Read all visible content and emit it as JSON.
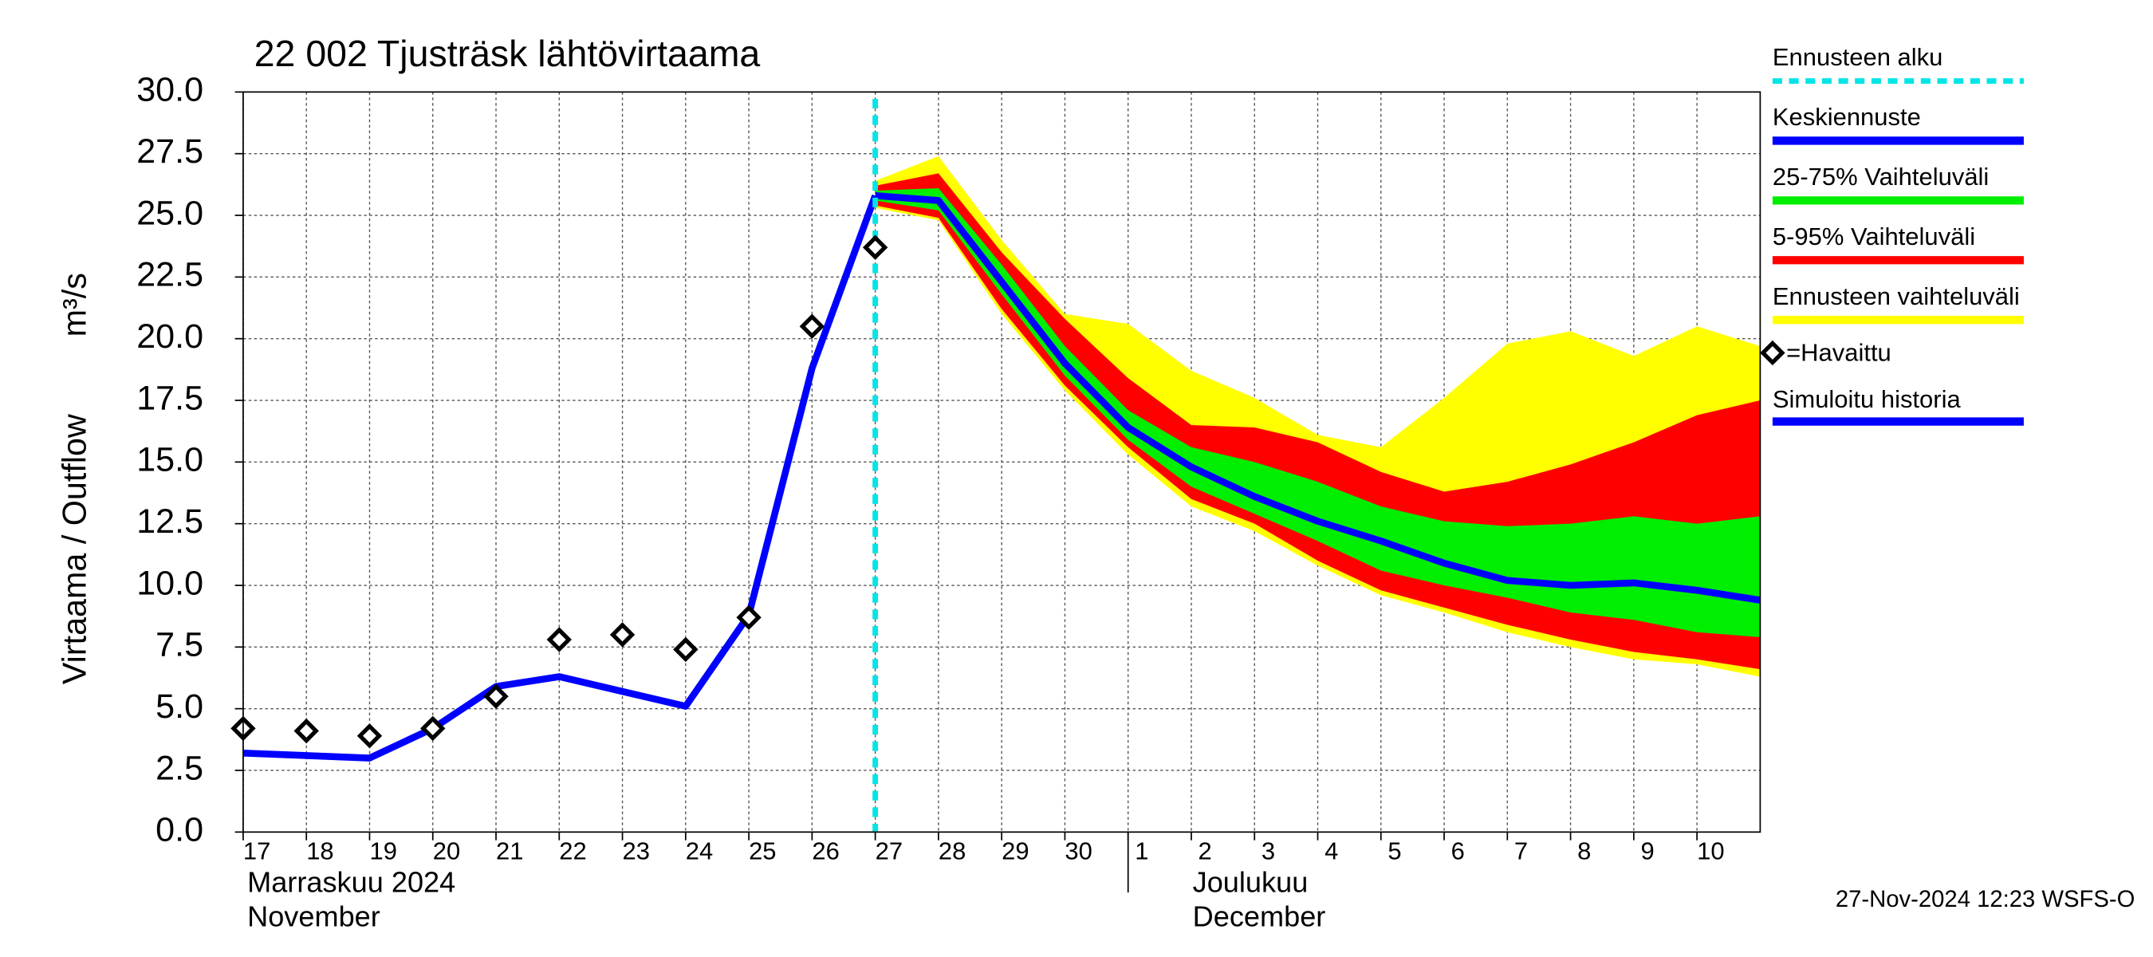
{
  "chart_data": {
    "type": "forecast-band",
    "title": "22 002 Tjusträsk lähtövirtaama",
    "ylabel": "Virtaama / Outflow",
    "yunit": "m³/s",
    "ylim": [
      0,
      30
    ],
    "yticks": [
      {
        "value": 0,
        "label": "0.0"
      },
      {
        "value": 2.5,
        "label": "2.5"
      },
      {
        "value": 5,
        "label": "5.0"
      },
      {
        "value": 7.5,
        "label": "7.5"
      },
      {
        "value": 10,
        "label": "10.0"
      },
      {
        "value": 12.5,
        "label": "12.5"
      },
      {
        "value": 15,
        "label": "15.0"
      },
      {
        "value": 17.5,
        "label": "17.5"
      },
      {
        "value": 20,
        "label": "20.0"
      },
      {
        "value": 22.5,
        "label": "22.5"
      },
      {
        "value": 25,
        "label": "25.0"
      },
      {
        "value": 27.5,
        "label": "27.5"
      },
      {
        "value": 30,
        "label": "30.0"
      }
    ],
    "xlim": [
      "2024-11-17",
      "2024-12-11"
    ],
    "xticks": [
      {
        "value": "2024-11-17",
        "label": "17"
      },
      {
        "value": "2024-11-18",
        "label": "18"
      },
      {
        "value": "2024-11-19",
        "label": "19"
      },
      {
        "value": "2024-11-20",
        "label": "20"
      },
      {
        "value": "2024-11-21",
        "label": "21"
      },
      {
        "value": "2024-11-22",
        "label": "22"
      },
      {
        "value": "2024-11-23",
        "label": "23"
      },
      {
        "value": "2024-11-24",
        "label": "24"
      },
      {
        "value": "2024-11-25",
        "label": "25"
      },
      {
        "value": "2024-11-26",
        "label": "26"
      },
      {
        "value": "2024-11-27",
        "label": "27"
      },
      {
        "value": "2024-11-28",
        "label": "28"
      },
      {
        "value": "2024-11-29",
        "label": "29"
      },
      {
        "value": "2024-11-30",
        "label": "30"
      },
      {
        "value": "2024-12-01",
        "label": "1"
      },
      {
        "value": "2024-12-02",
        "label": "2"
      },
      {
        "value": "2024-12-03",
        "label": "3"
      },
      {
        "value": "2024-12-04",
        "label": "4"
      },
      {
        "value": "2024-12-05",
        "label": "5"
      },
      {
        "value": "2024-12-06",
        "label": "6"
      },
      {
        "value": "2024-12-07",
        "label": "7"
      },
      {
        "value": "2024-12-08",
        "label": "8"
      },
      {
        "value": "2024-12-09",
        "label": "9"
      },
      {
        "value": "2024-12-10",
        "label": "10"
      }
    ],
    "grid": true,
    "month_labels": [
      {
        "value": "2024-11-17",
        "lines": [
          "Marraskuu 2024",
          "November"
        ]
      },
      {
        "value": "2024-12-01",
        "lines": [
          "Joulukuu",
          "December"
        ]
      }
    ],
    "forecast_start": {
      "name": "Ennusteen alku",
      "value": "2024-11-27",
      "color": "#00e5e5"
    },
    "history_x": [
      "2024-11-17",
      "2024-11-18",
      "2024-11-19",
      "2024-11-20",
      "2024-11-21",
      "2024-11-22",
      "2024-11-23",
      "2024-11-24",
      "2024-11-25",
      "2024-11-26",
      "2024-11-27"
    ],
    "observed": {
      "name": "=Havaittu",
      "values": [
        4.2,
        4.1,
        3.9,
        4.2,
        5.5,
        7.8,
        8.0,
        7.4,
        8.7,
        20.5,
        23.7
      ]
    },
    "simulated": {
      "name": "Simuloitu historia",
      "color": "#0000ff",
      "values": [
        3.2,
        3.1,
        3.0,
        4.2,
        5.9,
        6.3,
        5.7,
        5.1,
        8.8,
        18.8,
        25.8
      ]
    },
    "forecast_x": [
      "2024-11-27",
      "2024-11-28",
      "2024-11-29",
      "2024-11-30",
      "2024-12-01",
      "2024-12-02",
      "2024-12-03",
      "2024-12-04",
      "2024-12-05",
      "2024-12-06",
      "2024-12-07",
      "2024-12-08",
      "2024-12-09",
      "2024-12-10",
      "2024-12-11"
    ],
    "median": {
      "name": "Keskiennuste",
      "color": "#0000ff",
      "values": [
        25.8,
        25.6,
        22.3,
        19.0,
        16.4,
        14.8,
        13.6,
        12.6,
        11.8,
        10.9,
        10.2,
        10.0,
        10.1,
        9.8,
        9.4
      ]
    },
    "bands": [
      {
        "name": "25-75% Vaihteluväli",
        "color": "#00ee00",
        "lower": [
          25.6,
          25.2,
          21.8,
          18.5,
          15.9,
          14.0,
          12.9,
          11.8,
          10.6,
          10.0,
          9.5,
          8.9,
          8.6,
          8.1,
          7.9
        ],
        "upper": [
          26.0,
          26.1,
          23.0,
          19.7,
          17.1,
          15.6,
          15.0,
          14.2,
          13.2,
          12.6,
          12.4,
          12.5,
          12.8,
          12.5,
          12.8
        ]
      },
      {
        "name": "5-95% Vaihteluväli",
        "color": "#ff0000",
        "lower": [
          25.4,
          24.9,
          21.2,
          18.1,
          15.6,
          13.5,
          12.5,
          11.0,
          9.8,
          9.1,
          8.4,
          7.8,
          7.3,
          7.0,
          6.6
        ],
        "upper": [
          26.2,
          26.7,
          23.5,
          20.8,
          18.4,
          16.5,
          16.4,
          15.8,
          14.6,
          13.8,
          14.2,
          14.9,
          15.8,
          16.9,
          17.5
        ]
      },
      {
        "name": "Ennusteen vaihteluväli",
        "color": "#ffff00",
        "lower": [
          25.3,
          24.8,
          21.0,
          17.9,
          15.3,
          13.2,
          12.2,
          10.8,
          9.6,
          8.9,
          8.1,
          7.5,
          7.0,
          6.8,
          6.3
        ],
        "upper": [
          26.4,
          27.4,
          24.0,
          21.0,
          20.6,
          18.7,
          17.6,
          16.1,
          15.6,
          17.6,
          19.8,
          20.3,
          19.3,
          20.5,
          19.7
        ]
      }
    ],
    "footer": "27-Nov-2024 12:23 WSFS-O"
  }
}
